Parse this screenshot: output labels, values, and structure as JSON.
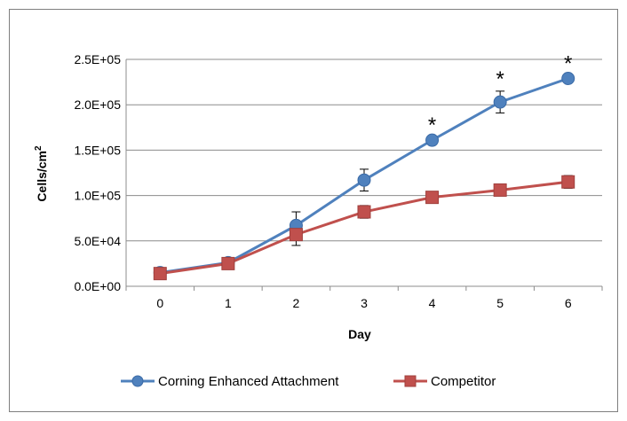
{
  "chart_data": {
    "type": "line",
    "title": "",
    "xlabel": "Day",
    "ylabel": "Cells/cm",
    "ylabel_superscript": "2",
    "x": [
      0,
      1,
      2,
      3,
      4,
      5,
      6
    ],
    "x_tick_labels": [
      "0",
      "1",
      "2",
      "3",
      "4",
      "5",
      "6"
    ],
    "ylim": [
      0,
      250000
    ],
    "y_ticks": [
      0,
      50000,
      100000,
      150000,
      200000,
      250000
    ],
    "y_tick_labels": [
      "0.0E+00",
      "5.0E+04",
      "1.0E+05",
      "1.5E+05",
      "2.0E+05",
      "2.5E+05"
    ],
    "grid": true,
    "legend_position": "bottom",
    "series": [
      {
        "name": "Corning Enhanced Attachment",
        "color": "#4F81BD",
        "marker": "circle",
        "values": [
          15000,
          26000,
          67000,
          117000,
          161000,
          203000,
          229000
        ],
        "errors": [
          2000,
          2000,
          15000,
          12000,
          3000,
          12000,
          3000
        ]
      },
      {
        "name": "Competitor",
        "color": "#C0504D",
        "marker": "square",
        "values": [
          14000,
          25000,
          57000,
          82000,
          98000,
          106000,
          115000
        ],
        "errors": [
          2000,
          2000,
          12000,
          7000,
          3000,
          4000,
          7000
        ]
      }
    ],
    "annotations": [
      {
        "x": 4,
        "text": "*"
      },
      {
        "x": 5,
        "text": "*"
      },
      {
        "x": 6,
        "text": "*"
      }
    ]
  }
}
